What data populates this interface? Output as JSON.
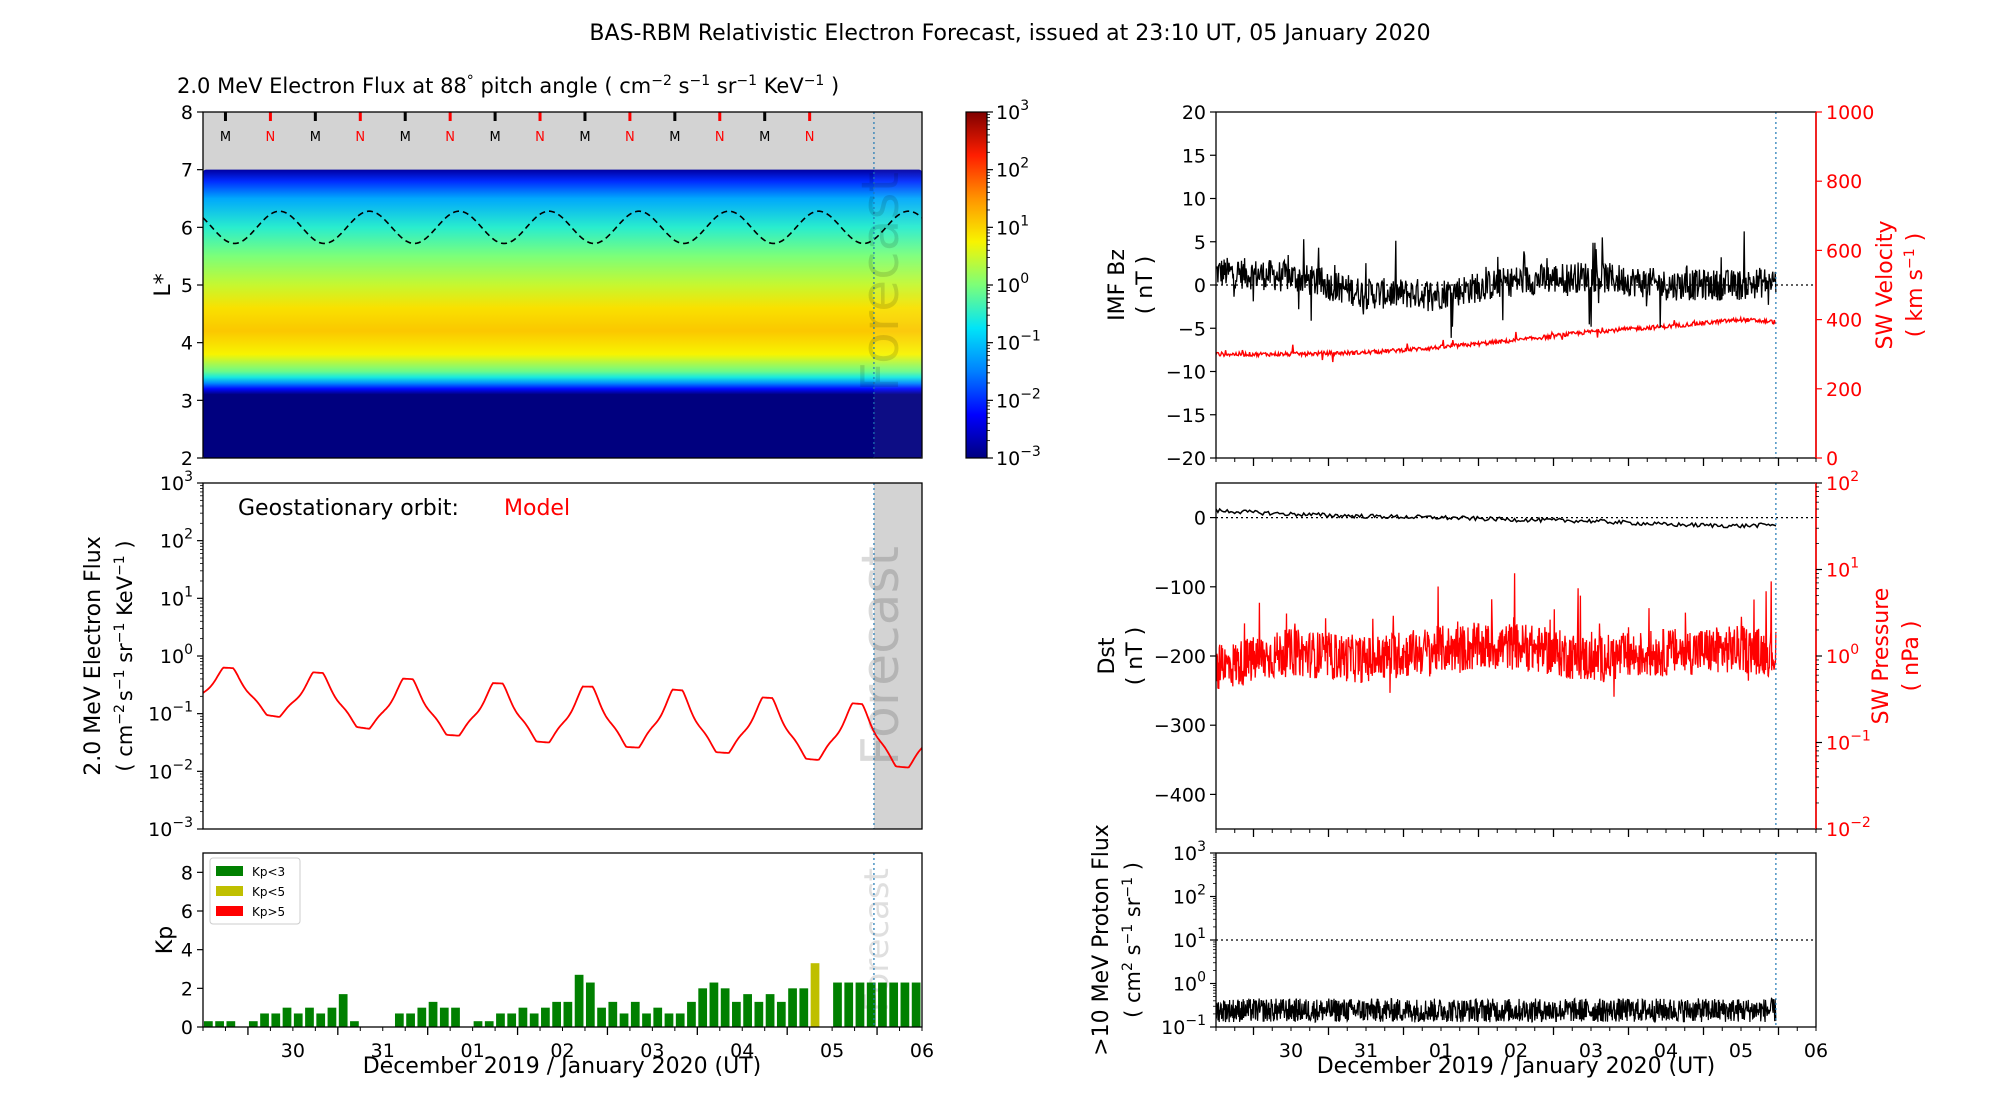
{
  "figure": {
    "title": "BAS-RBM Relativistic Electron Forecast, issued at 23:10 UT, 05 January 2020"
  },
  "chart_data": [
    {
      "id": "flux_map",
      "type": "heatmap",
      "title_parts": [
        "2.0 MeV Electron Flux at 88",
        "°",
        " pitch angle ( cm",
        "−2",
        " s",
        "−1",
        " sr",
        "−1",
        " KeV",
        "−1",
        " )"
      ],
      "ylabel": "L*",
      "ylim": [
        2,
        8
      ],
      "yticks": [
        "2",
        "3",
        "4",
        "5",
        "6",
        "7",
        "8"
      ],
      "xlim_days": [
        "2019-12-29 12:00",
        "2020-01-06 12:00"
      ],
      "forecast_start": "2020-01-05 23:10",
      "watermark": "Forecast",
      "colorbar": {
        "scale": "log",
        "range": [
          0.001,
          1000
        ],
        "ticks": [
          {
            "base": "10",
            "exp": "3"
          },
          {
            "base": "10",
            "exp": "2"
          },
          {
            "base": "10",
            "exp": "1"
          },
          {
            "base": "10",
            "exp": "0"
          },
          {
            "base": "10",
            "exp": "−1"
          },
          {
            "base": "10",
            "exp": "−2"
          },
          {
            "base": "10",
            "exp": "−3"
          }
        ],
        "colors": [
          "#00007f",
          "#0000ff",
          "#0080ff",
          "#00e4f8",
          "#7cff79",
          "#f8f400",
          "#ff9400",
          "#ff1e00",
          "#7f0000"
        ]
      },
      "flux_profile_log10": [
        {
          "L": 2.0,
          "v": -3
        },
        {
          "L": 3.1,
          "v": -3
        },
        {
          "L": 3.2,
          "v": -2.2
        },
        {
          "L": 3.3,
          "v": -1.4
        },
        {
          "L": 3.4,
          "v": -0.6
        },
        {
          "L": 3.5,
          "v": -0.1
        },
        {
          "L": 3.8,
          "v": 0.75
        },
        {
          "L": 4.2,
          "v": 1.1
        },
        {
          "L": 4.6,
          "v": 0.9
        },
        {
          "L": 5.0,
          "v": 0.45
        },
        {
          "L": 5.5,
          "v": 0.0
        },
        {
          "L": 6.0,
          "v": -0.5
        },
        {
          "L": 6.5,
          "v": -1.2
        },
        {
          "L": 6.8,
          "v": -2.0
        },
        {
          "L": 7.0,
          "v": -2.8
        }
      ],
      "upper_boundary_L": 7.0,
      "geo_orbit_L": {
        "mean": 6.0,
        "amplitude": 0.28,
        "period_days": 1.0
      },
      "mlt_markers": [
        "M",
        "N",
        "M",
        "N",
        "M",
        "N",
        "M",
        "N",
        "M",
        "N",
        "M",
        "N",
        "M",
        "N"
      ],
      "mlt_colors": {
        "M": "#000000",
        "N": "#ff0000"
      }
    },
    {
      "id": "geo_flux",
      "type": "line",
      "ylabel": "2.0 MeV Electron Flux",
      "ylabel2_parts": [
        "( cm",
        "−2",
        "s",
        "−1",
        " sr",
        "−1",
        " KeV",
        "−1",
        " )"
      ],
      "yscale": "log",
      "ylim": [
        0.001,
        1000
      ],
      "yticks": [
        {
          "base": "10",
          "exp": "3"
        },
        {
          "base": "10",
          "exp": "2"
        },
        {
          "base": "10",
          "exp": "1"
        },
        {
          "base": "10",
          "exp": "0"
        },
        {
          "base": "10",
          "exp": "−1"
        },
        {
          "base": "10",
          "exp": "−2"
        },
        {
          "base": "10",
          "exp": "−3"
        }
      ],
      "annotation_label": "Geostationary orbit:",
      "annotation_model": "Model",
      "watermark": "Forecast",
      "series": [
        {
          "color": "#ff0000",
          "daily_peak": [
            0.65,
            0.55,
            0.42,
            0.35,
            0.3,
            0.28,
            0.2,
            0.16,
            0.12
          ],
          "daily_trough": [
            0.13,
            0.08,
            0.05,
            0.04,
            0.03,
            0.025,
            0.02,
            0.015,
            0.011
          ]
        }
      ]
    },
    {
      "id": "kp",
      "type": "bar",
      "ylabel": "Kp",
      "ylim": [
        0,
        9
      ],
      "yticks": [
        "0",
        "2",
        "4",
        "6",
        "8"
      ],
      "watermark": "Forecast",
      "legend": [
        {
          "label": "Kp<3",
          "color": "#008000"
        },
        {
          "label": "Kp<5",
          "color": "#bfbf00"
        },
        {
          "label": "Kp>5",
          "color": "#ff0000"
        }
      ],
      "x_start": "2019-12-29 12:00",
      "bar_interval_hours": 3,
      "values": [
        0.3,
        0.3,
        0.3,
        0,
        0.3,
        0.7,
        0.7,
        1.0,
        0.7,
        1.0,
        0.7,
        1.0,
        1.7,
        0.3,
        0,
        0,
        0,
        0.7,
        0.7,
        1.0,
        1.3,
        1.0,
        1.0,
        0,
        0.3,
        0.3,
        0.7,
        0.7,
        1.0,
        0.7,
        1.0,
        1.3,
        1.3,
        2.7,
        2.3,
        1.0,
        1.3,
        0.7,
        1.3,
        0.7,
        1.0,
        0.7,
        0.7,
        1.3,
        2.0,
        2.3,
        2.0,
        1.3,
        1.7,
        1.3,
        1.7,
        1.3,
        2.0,
        2.0,
        3.3,
        0,
        2.3,
        2.3,
        2.3,
        2.3,
        2.3,
        2.3,
        2.3,
        2.3,
        2.3,
        2.3,
        2.3,
        2.3,
        2.3,
        2.3
      ],
      "forecast_values_start_index": 56
    },
    {
      "id": "imf_sw",
      "type": "line",
      "ylabel": "IMF Bz",
      "ylabel_unit": "( nT )",
      "ylim": [
        -20,
        20
      ],
      "yticks": [
        "20",
        "15",
        "10",
        "5",
        "0",
        "−5",
        "−10",
        "−15",
        "−20"
      ],
      "ylabel_right": "SW Velocity",
      "ylabel_right_unit_parts": [
        "( km s",
        "−1",
        " )"
      ],
      "ylim_right": [
        0,
        1000
      ],
      "yticks_right": [
        "1000",
        "800",
        "600",
        "400",
        "200",
        "0"
      ],
      "series": [
        {
          "name": "IMF Bz",
          "color": "#000000",
          "daily_levels": [
            1.5,
            1.0,
            -1.0,
            -1.0,
            0.5,
            1.0,
            0.0,
            0.0,
            1.0
          ],
          "noise": 1.8
        },
        {
          "name": "SW Velocity",
          "color": "#ff0000",
          "daily_levels": [
            300,
            300,
            305,
            320,
            340,
            365,
            380,
            400,
            385,
            420,
            520
          ],
          "noise": 6
        }
      ]
    },
    {
      "id": "dst_pressure",
      "type": "line",
      "ylabel": "Dst",
      "ylabel_unit": "( nT )",
      "ylim": [
        -450,
        50
      ],
      "yticks": [
        "0",
        "−100",
        "−200",
        "−300",
        "−400"
      ],
      "ylabel_right": "SW Pressure",
      "ylabel_right_unit": "( nPa )",
      "yscale_right": "log",
      "ylim_right": [
        0.01,
        100
      ],
      "yticks_right": [
        {
          "base": "10",
          "exp": "2"
        },
        {
          "base": "10",
          "exp": "1"
        },
        {
          "base": "10",
          "exp": "0"
        },
        {
          "base": "10",
          "exp": "−1"
        },
        {
          "base": "10",
          "exp": "−2"
        }
      ],
      "series": [
        {
          "name": "Dst",
          "color": "#000000",
          "daily_levels": [
            10,
            5,
            2,
            0,
            -3,
            -5,
            -10,
            -12,
            -8,
            -15
          ]
        },
        {
          "name": "SW Pressure",
          "color": "#ff0000",
          "daily_levels": [
            0.7,
            1.1,
            0.9,
            1.2,
            1.3,
            0.9,
            1.1,
            1.2,
            0.9,
            0.05,
            0.8,
            2.0,
            0.5
          ]
        }
      ]
    },
    {
      "id": "proton_flux",
      "type": "line",
      "ylabel": ">10 MeV Proton Flux",
      "ylabel2_parts": [
        "( cm",
        "2",
        " s",
        "−1",
        " sr",
        "−1",
        " )"
      ],
      "yscale": "log",
      "ylim": [
        0.1,
        1000
      ],
      "yticks": [
        {
          "base": "10",
          "exp": "3"
        },
        {
          "base": "10",
          "exp": "2"
        },
        {
          "base": "10",
          "exp": "1"
        },
        {
          "base": "10",
          "exp": "0"
        },
        {
          "base": "10",
          "exp": "−1"
        }
      ],
      "threshold": 10,
      "series": [
        {
          "color": "#000000",
          "level": 0.2
        }
      ]
    }
  ],
  "time_axis": {
    "tick_labels": [
      "30",
      "31",
      "01",
      "02",
      "03",
      "04",
      "05",
      "06"
    ],
    "xlabel": "December 2019 / January 2020 (UT)"
  }
}
